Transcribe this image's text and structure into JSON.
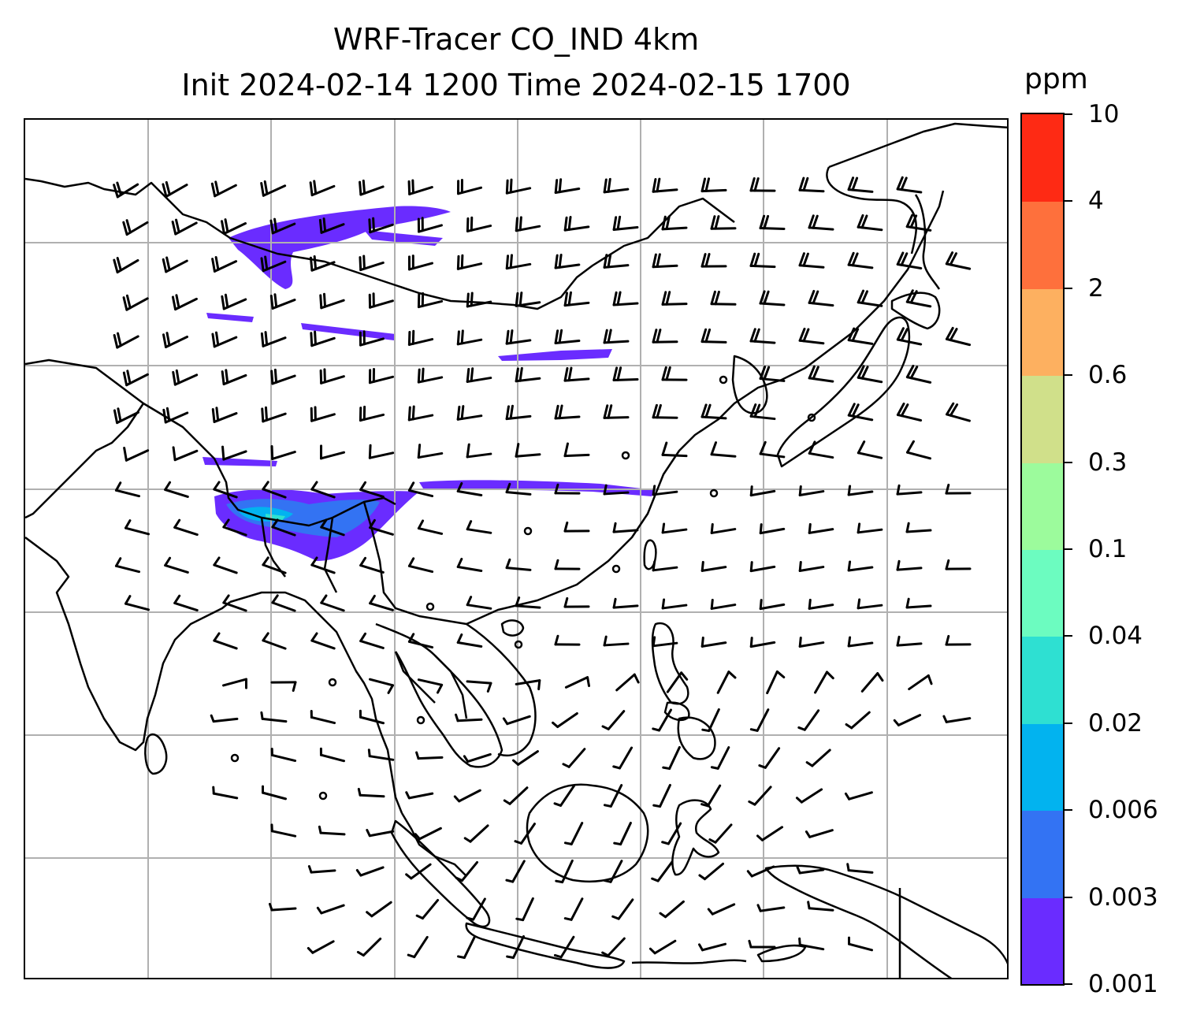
{
  "title": {
    "line1": "WRF-Tracer CO_IND 4km",
    "line2": "Init 2024-02-14 1200 Time 2024-02-15 1700"
  },
  "colorbar": {
    "unit": "ppm",
    "ticks": [
      "0.001",
      "0.003",
      "0.006",
      "0.02",
      "0.04",
      "0.1",
      "0.3",
      "0.6",
      "2",
      "4",
      "10"
    ],
    "colors": [
      "#6a2cff",
      "#3373f3",
      "#02b3ef",
      "#2ee0d2",
      "#6cfcc0",
      "#9cfb9c",
      "#d0e08a",
      "#fdb060",
      "#fe703c",
      "#fe2a14"
    ]
  },
  "map": {
    "gridlines": true,
    "wind_barbs": true,
    "tracer_color": "#6a2cff"
  }
}
